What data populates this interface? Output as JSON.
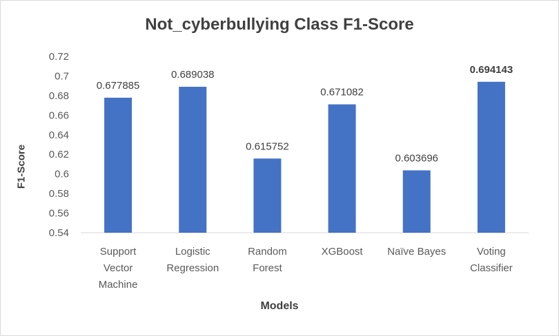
{
  "chart_data": {
    "type": "bar",
    "title": "Not_cyberbullying Class F1-Score",
    "xlabel": "Models",
    "ylabel": "F1-Score",
    "ylim": [
      0.54,
      0.72
    ],
    "yticks": [
      "0.54",
      "0.56",
      "0.58",
      "0.6",
      "0.62",
      "0.64",
      "0.66",
      "0.68",
      "0.7",
      "0.72"
    ],
    "categories": [
      [
        "Support",
        "Vector",
        "Machine"
      ],
      [
        "Logistic",
        "Regression"
      ],
      [
        "Random",
        "Forest"
      ],
      [
        "XGBoost"
      ],
      [
        "Naïve Bayes"
      ],
      [
        "Voting",
        "Classifier"
      ]
    ],
    "values": [
      0.677885,
      0.689038,
      0.615752,
      0.671082,
      0.603696,
      0.694143
    ],
    "value_labels": [
      "0.677885",
      "0.689038",
      "0.615752",
      "0.671082",
      "0.603696",
      "0.694143"
    ],
    "highlight_index": 5,
    "bar_color": "#4472c4",
    "grid": false,
    "legend": "none"
  }
}
